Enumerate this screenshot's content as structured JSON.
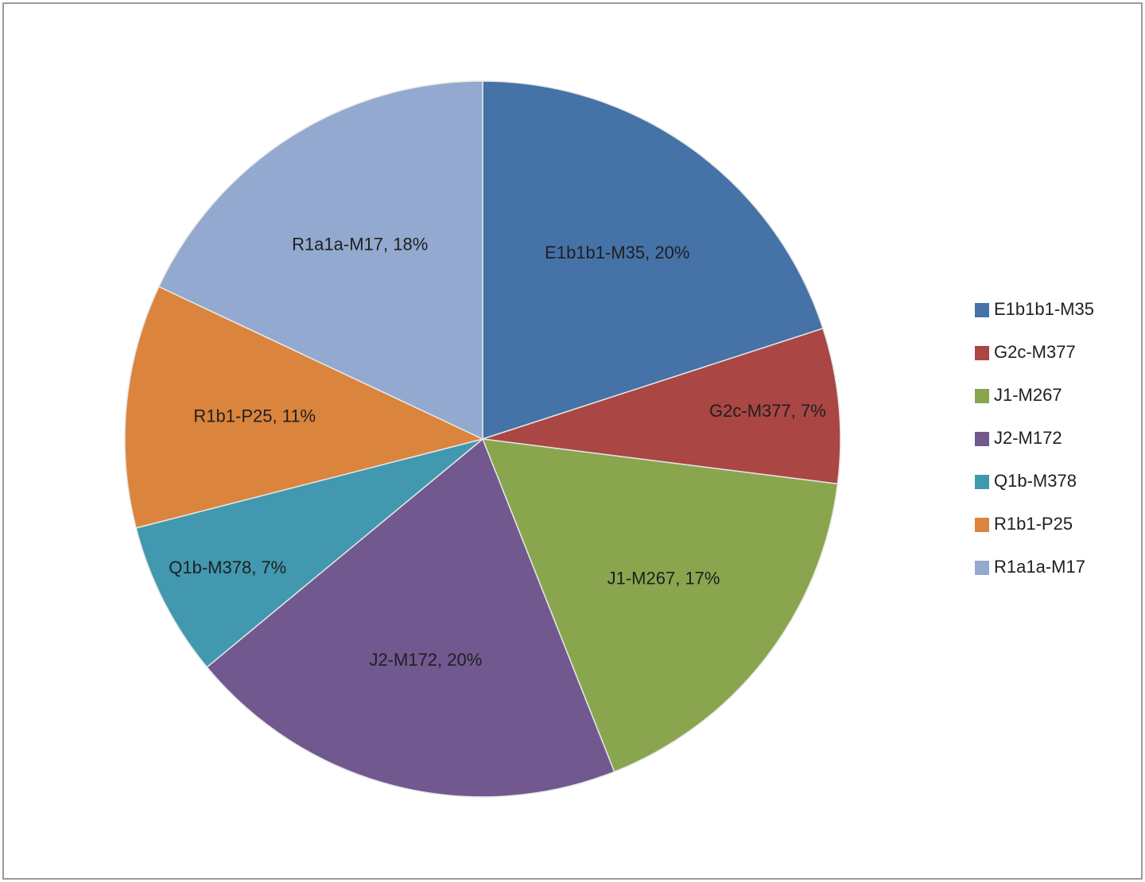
{
  "chart_data": {
    "type": "pie",
    "categories": [
      "E1b1b1-M35",
      "G2c-M377",
      "J1-M267",
      "J2-M172",
      "Q1b-M378",
      "R1b1-P25",
      "R1a1a-M17"
    ],
    "values": [
      20,
      7,
      17,
      20,
      7,
      11,
      18
    ],
    "value_labels": [
      "E1b1b1-M35, 20%",
      "G2c-M377, 7%",
      "J1-M267, 17%",
      "J2-M172, 20%",
      "Q1b-M378, 7%",
      "R1b1-P25, 11%",
      "R1a1a-M17, 18%"
    ],
    "colors": [
      "#4572a7",
      "#aa4643",
      "#89a54e",
      "#71588f",
      "#4198af",
      "#db843d",
      "#93a9cf"
    ],
    "legend": "right"
  }
}
